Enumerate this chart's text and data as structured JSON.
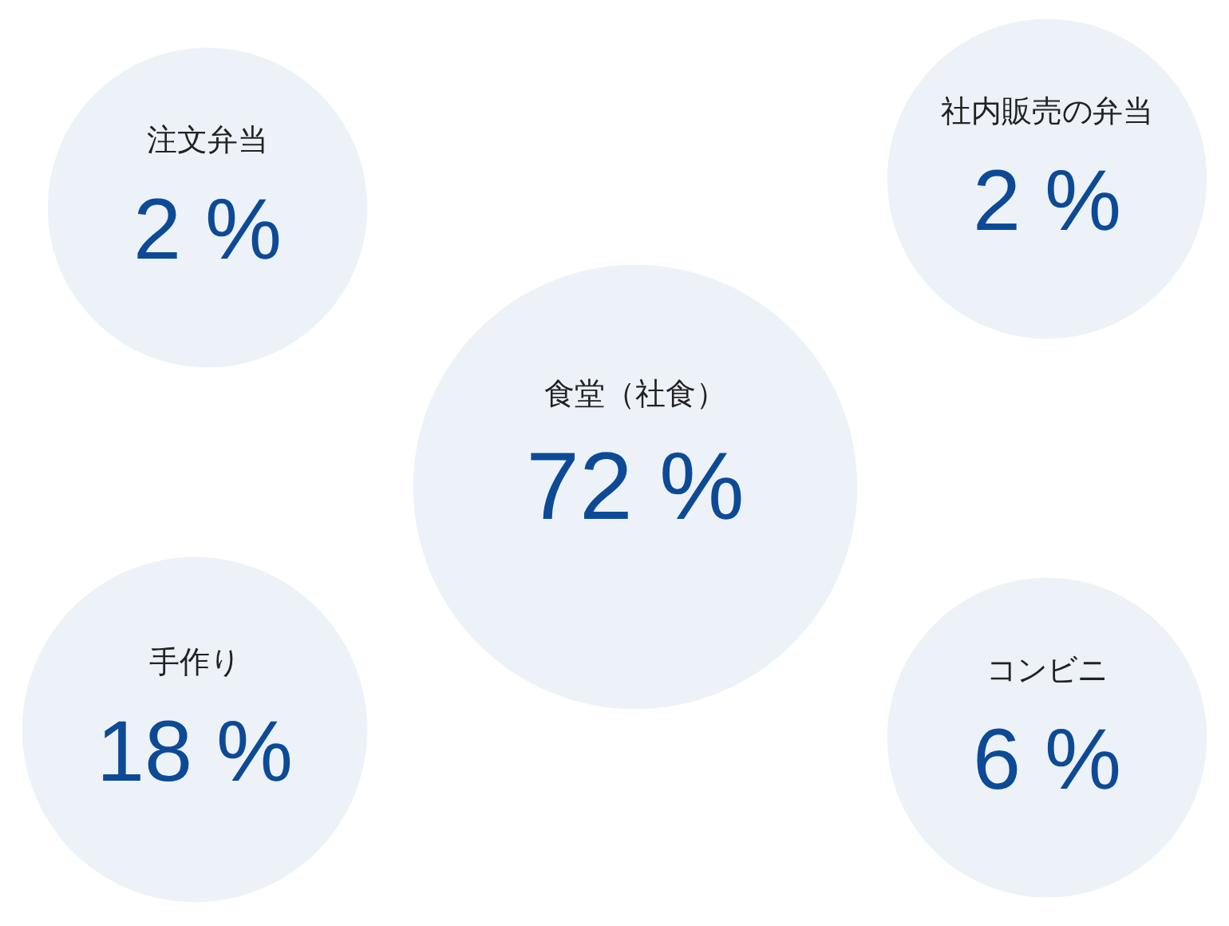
{
  "chart_data": {
    "type": "other",
    "categories": [
      "注文弁当",
      "社内販売の弁当",
      "食堂（社食）",
      "手作り",
      "コンビニ"
    ],
    "values": [
      2,
      2,
      72,
      18,
      6
    ],
    "value_labels": [
      "2 %",
      "2 %",
      "72 %",
      "18 %",
      "6 %"
    ],
    "colors": [
      "#edf2f9",
      "#edf2f9",
      "#edf2f9",
      "#edf2f9",
      "#edf2f9"
    ]
  }
}
